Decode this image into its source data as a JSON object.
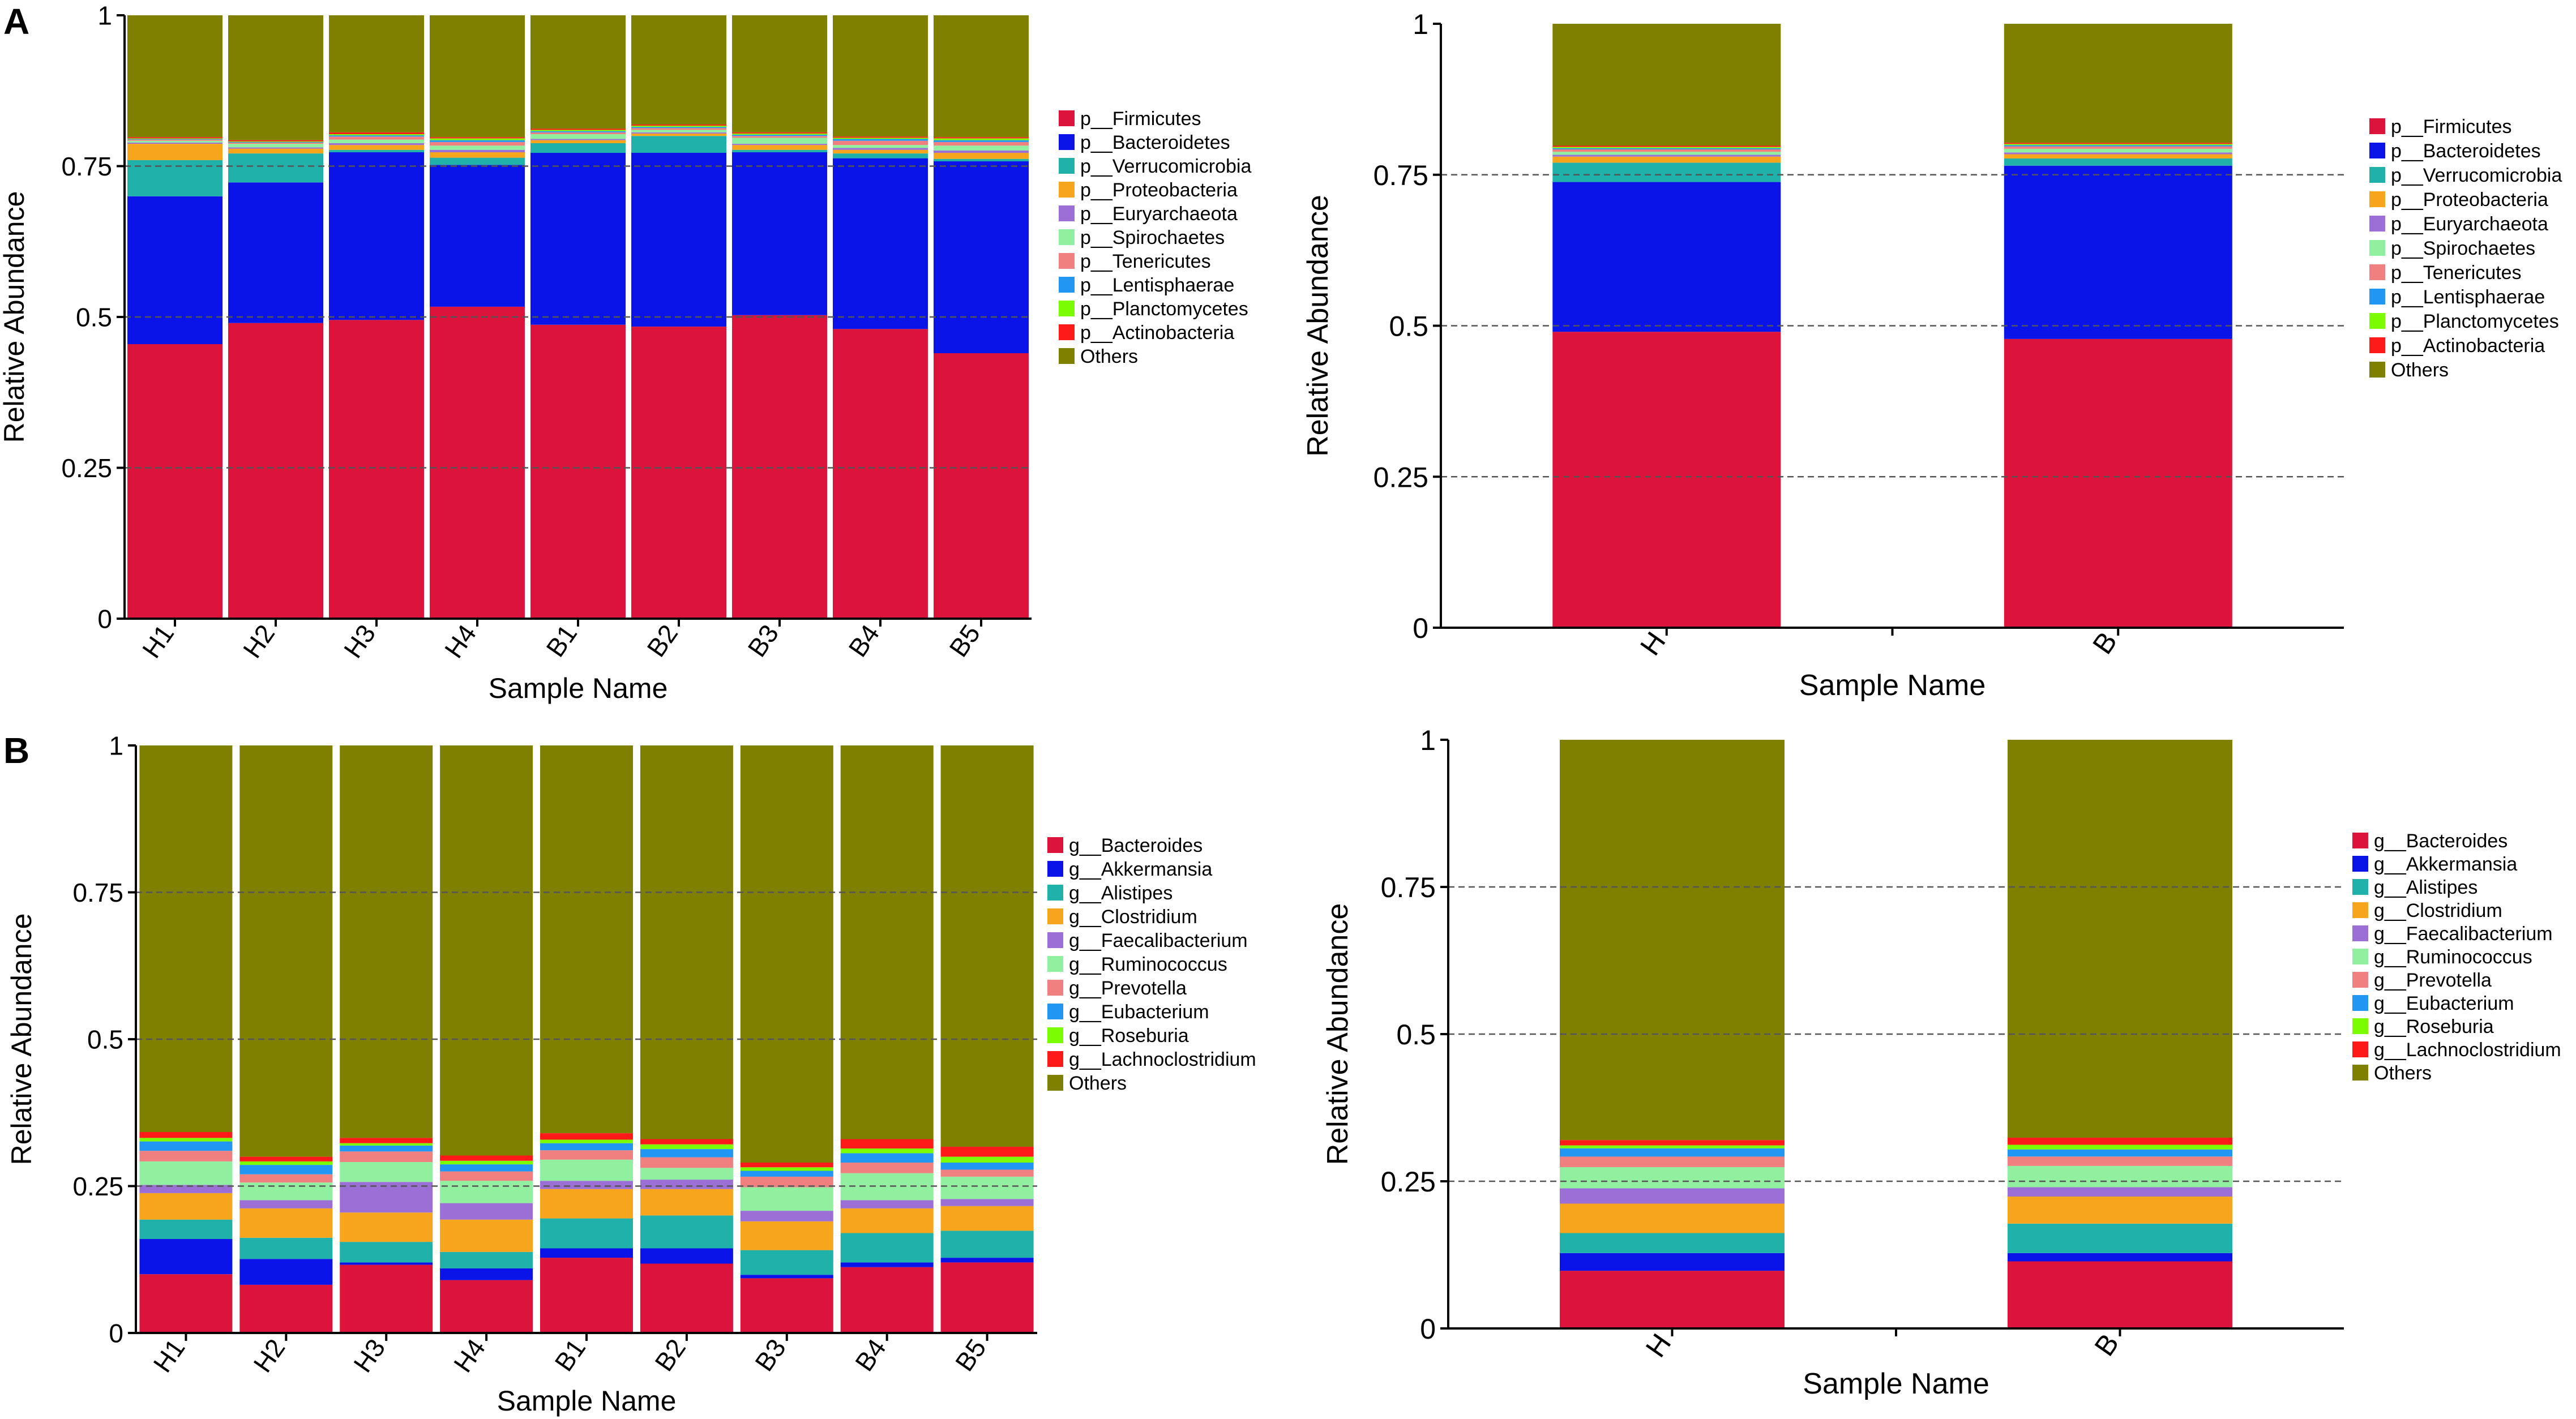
{
  "figure": {
    "panel_labels": [
      "A",
      "B"
    ],
    "axis_ticks": [
      "0",
      "0.25",
      "0.5",
      "0.75",
      "1"
    ]
  },
  "colors": {
    "series": [
      "#dc143c",
      "#0a14e8",
      "#20b2aa",
      "#f7a51d",
      "#9b6fd6",
      "#90f0a0",
      "#f08080",
      "#2196f3",
      "#7cfc00",
      "#ff1a1a",
      "#808000"
    ],
    "axis": "#000000",
    "grid": "#555555"
  },
  "chart_data": [
    {
      "id": "A-samples",
      "panel": "A",
      "type": "bar",
      "stacked": true,
      "xlabel": "Sample Name",
      "ylabel": "Relative Abundance",
      "ylim": [
        0,
        1
      ],
      "categories": [
        "H1",
        "H2",
        "H3",
        "H4",
        "B1",
        "B2",
        "B3",
        "B4",
        "B5"
      ],
      "legend_position": "right",
      "series": [
        {
          "name": "p__Firmicutes",
          "values": [
            0.455,
            0.49,
            0.495,
            0.517,
            0.487,
            0.484,
            0.503,
            0.48,
            0.44
          ]
        },
        {
          "name": "p__Bacteroidetes",
          "values": [
            0.245,
            0.233,
            0.278,
            0.235,
            0.285,
            0.288,
            0.27,
            0.283,
            0.318
          ]
        },
        {
          "name": "p__Verrucomicrobia",
          "values": [
            0.06,
            0.048,
            0.004,
            0.012,
            0.016,
            0.028,
            0.004,
            0.008,
            0.004
          ]
        },
        {
          "name": "p__Proteobacteria",
          "values": [
            0.027,
            0.008,
            0.008,
            0.009,
            0.005,
            0.004,
            0.008,
            0.006,
            0.01
          ]
        },
        {
          "name": "p__Euryarchaeota",
          "values": [
            0.002,
            0.002,
            0.003,
            0.004,
            0.002,
            0.002,
            0.002,
            0.003,
            0.004
          ]
        },
        {
          "name": "p__Spirochaetes",
          "values": [
            0.003,
            0.006,
            0.006,
            0.007,
            0.008,
            0.004,
            0.01,
            0.005,
            0.008
          ]
        },
        {
          "name": "p__Tenericutes",
          "values": [
            0.002,
            0.002,
            0.005,
            0.006,
            0.003,
            0.003,
            0.003,
            0.007,
            0.006
          ]
        },
        {
          "name": "p__Lentisphaerae",
          "values": [
            0.001,
            0.001,
            0.002,
            0.003,
            0.002,
            0.002,
            0.002,
            0.003,
            0.003
          ]
        },
        {
          "name": "p__Planctomycetes",
          "values": [
            0.001,
            0.001,
            0.002,
            0.003,
            0.002,
            0.002,
            0.002,
            0.002,
            0.003
          ]
        },
        {
          "name": "p__Actinobacteria",
          "values": [
            0.002,
            0.002,
            0.003,
            0.002,
            0.002,
            0.002,
            0.002,
            0.002,
            0.002
          ]
        },
        {
          "name": "Others",
          "values": [
            0.202,
            0.207,
            0.194,
            0.202,
            0.188,
            0.181,
            0.194,
            0.201,
            0.202
          ]
        }
      ]
    },
    {
      "id": "A-groups",
      "panel": "A",
      "type": "bar",
      "stacked": true,
      "xlabel": "Sample Name",
      "ylabel": "Relative Abundance",
      "ylim": [
        0,
        1
      ],
      "categories": [
        "H",
        "B"
      ],
      "legend_position": "right",
      "series": [
        {
          "name": "p__Firmicutes",
          "values": [
            0.49,
            0.478
          ]
        },
        {
          "name": "p__Bacteroidetes",
          "values": [
            0.248,
            0.287
          ]
        },
        {
          "name": "p__Verrucomicrobia",
          "values": [
            0.032,
            0.012
          ]
        },
        {
          "name": "p__Proteobacteria",
          "values": [
            0.01,
            0.007
          ]
        },
        {
          "name": "p__Euryarchaeota",
          "values": [
            0.003,
            0.003
          ]
        },
        {
          "name": "p__Spirochaetes",
          "values": [
            0.005,
            0.006
          ]
        },
        {
          "name": "p__Tenericutes",
          "values": [
            0.004,
            0.004
          ]
        },
        {
          "name": "p__Lentisphaerae",
          "values": [
            0.002,
            0.002
          ]
        },
        {
          "name": "p__Planctomycetes",
          "values": [
            0.002,
            0.002
          ]
        },
        {
          "name": "p__Actinobacteria",
          "values": [
            0.002,
            0.002
          ]
        },
        {
          "name": "Others",
          "values": [
            0.202,
            0.197
          ]
        }
      ]
    },
    {
      "id": "B-samples",
      "panel": "B",
      "type": "bar",
      "stacked": true,
      "xlabel": "Sample Name",
      "ylabel": "Relative Abundance",
      "ylim": [
        0,
        1
      ],
      "categories": [
        "H1",
        "H2",
        "H3",
        "H4",
        "B1",
        "B2",
        "B3",
        "B4",
        "B5"
      ],
      "legend_position": "right",
      "series": [
        {
          "name": "g__Bacteroides",
          "values": [
            0.1,
            0.082,
            0.116,
            0.09,
            0.128,
            0.118,
            0.093,
            0.112,
            0.12
          ]
        },
        {
          "name": "g__Akkermansia",
          "values": [
            0.06,
            0.044,
            0.004,
            0.02,
            0.016,
            0.026,
            0.006,
            0.008,
            0.008
          ]
        },
        {
          "name": "g__Alistipes",
          "values": [
            0.033,
            0.036,
            0.035,
            0.028,
            0.051,
            0.056,
            0.042,
            0.05,
            0.046
          ]
        },
        {
          "name": "g__Clostridium",
          "values": [
            0.045,
            0.05,
            0.05,
            0.055,
            0.05,
            0.045,
            0.049,
            0.042,
            0.042
          ]
        },
        {
          "name": "g__Faecalibacterium",
          "values": [
            0.014,
            0.014,
            0.052,
            0.028,
            0.014,
            0.016,
            0.018,
            0.014,
            0.012
          ]
        },
        {
          "name": "g__Ruminococcus",
          "values": [
            0.04,
            0.03,
            0.034,
            0.038,
            0.036,
            0.02,
            0.04,
            0.046,
            0.038
          ]
        },
        {
          "name": "g__Prevotella",
          "values": [
            0.018,
            0.014,
            0.018,
            0.016,
            0.016,
            0.018,
            0.018,
            0.018,
            0.012
          ]
        },
        {
          "name": "g__Eubacterium",
          "values": [
            0.016,
            0.016,
            0.01,
            0.012,
            0.012,
            0.014,
            0.01,
            0.016,
            0.012
          ]
        },
        {
          "name": "g__Roseburia",
          "values": [
            0.006,
            0.006,
            0.004,
            0.006,
            0.006,
            0.008,
            0.006,
            0.008,
            0.01
          ]
        },
        {
          "name": "g__Lachnoclostridium",
          "values": [
            0.01,
            0.008,
            0.009,
            0.009,
            0.011,
            0.009,
            0.008,
            0.016,
            0.017
          ]
        },
        {
          "name": "Others",
          "values": [
            0.658,
            0.7,
            0.668,
            0.698,
            0.66,
            0.67,
            0.71,
            0.67,
            0.683
          ]
        }
      ]
    },
    {
      "id": "B-groups",
      "panel": "B",
      "type": "bar",
      "stacked": true,
      "xlabel": "Sample Name",
      "ylabel": "Relative Abundance",
      "ylim": [
        0,
        1
      ],
      "categories": [
        "H",
        "B"
      ],
      "legend_position": "right",
      "series": [
        {
          "name": "g__Bacteroides",
          "values": [
            0.098,
            0.114
          ]
        },
        {
          "name": "g__Akkermansia",
          "values": [
            0.03,
            0.014
          ]
        },
        {
          "name": "g__Alistipes",
          "values": [
            0.034,
            0.05
          ]
        },
        {
          "name": "g__Clostridium",
          "values": [
            0.05,
            0.046
          ]
        },
        {
          "name": "g__Faecalibacterium",
          "values": [
            0.026,
            0.016
          ]
        },
        {
          "name": "g__Ruminococcus",
          "values": [
            0.036,
            0.036
          ]
        },
        {
          "name": "g__Prevotella",
          "values": [
            0.018,
            0.016
          ]
        },
        {
          "name": "g__Eubacterium",
          "values": [
            0.014,
            0.012
          ]
        },
        {
          "name": "g__Roseburia",
          "values": [
            0.005,
            0.008
          ]
        },
        {
          "name": "g__Lachnoclostridium",
          "values": [
            0.009,
            0.012
          ]
        },
        {
          "name": "Others",
          "values": [
            0.68,
            0.676
          ]
        }
      ]
    }
  ]
}
